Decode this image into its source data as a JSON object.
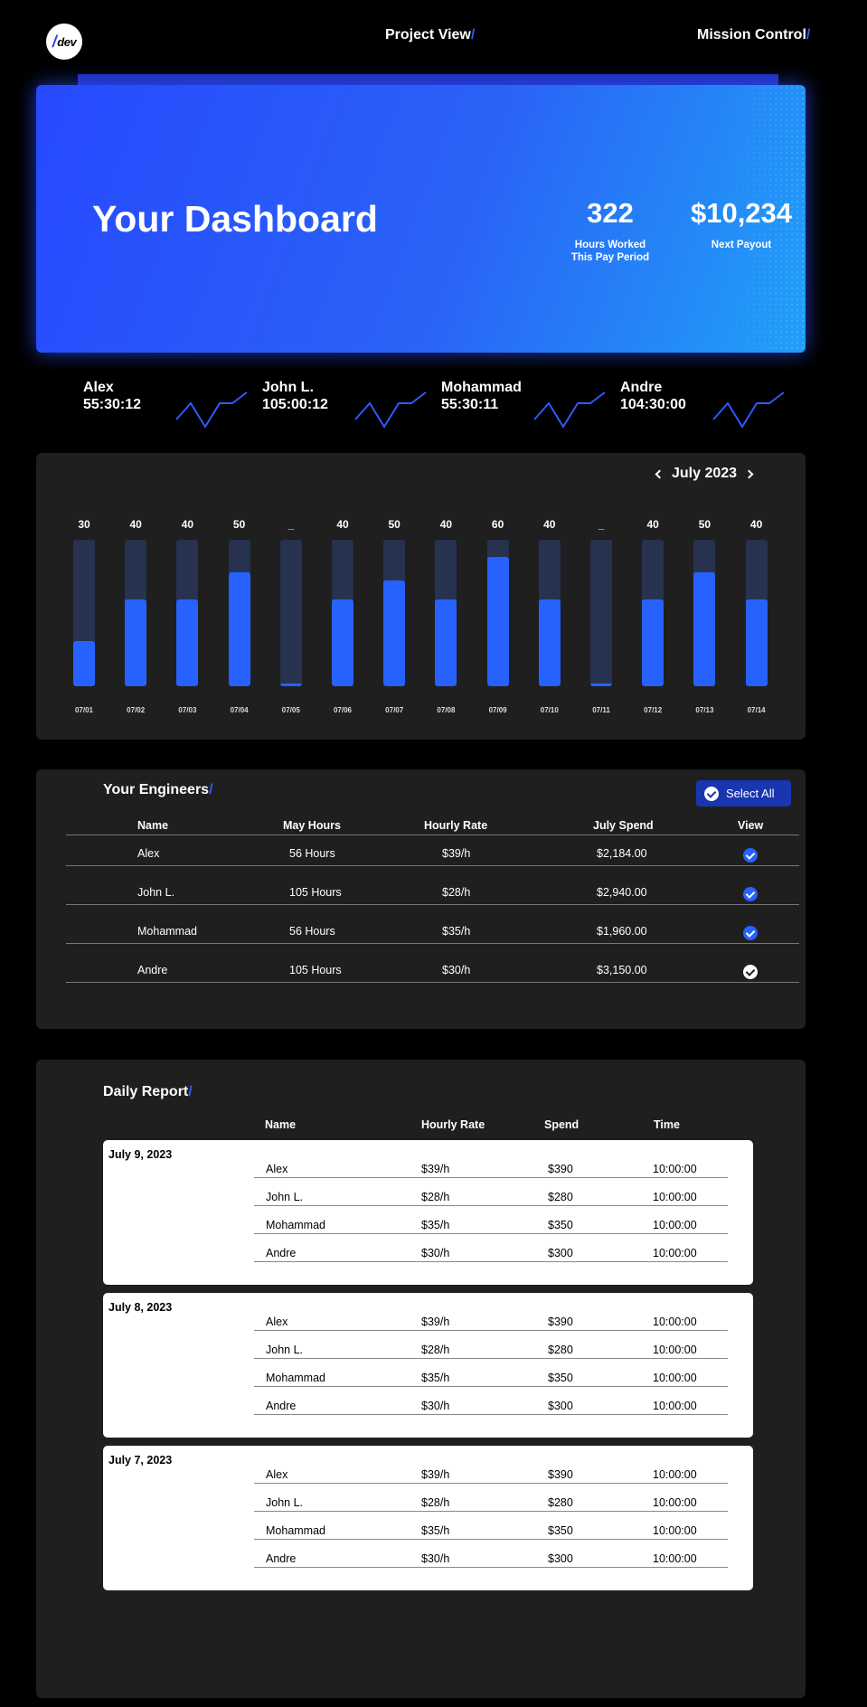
{
  "nav": {
    "project_view": "Project View",
    "mission_control": "Mission Control",
    "slash": "/",
    "logo_text": "dev"
  },
  "hero": {
    "title": "Your Dashboard",
    "hours_value": "322",
    "hours_label_1": "Hours Worked",
    "hours_label_2": "This Pay Period",
    "payout_value": "$10,234",
    "payout_label": "Next Payout"
  },
  "engineer_times": [
    {
      "name": "Alex",
      "time": "55:30:12"
    },
    {
      "name": "John L.",
      "time": "105:00:12"
    },
    {
      "name": "Mohammad",
      "time": "55:30:11"
    },
    {
      "name": "Andre",
      "time": "104:30:00"
    }
  ],
  "chart_data": {
    "type": "bar",
    "title": "July 2023",
    "categories": [
      "07/01",
      "07/02",
      "07/03",
      "07/04",
      "07/05",
      "07/06",
      "07/07",
      "07/08",
      "07/09",
      "07/10",
      "07/11",
      "07/12",
      "07/13",
      "07/14"
    ],
    "value_labels": [
      "30",
      "40",
      "40",
      "50",
      "_",
      "40",
      "50",
      "40",
      "60",
      "40",
      "_",
      "40",
      "50",
      "40"
    ],
    "fill_fraction": [
      0.31,
      0.59,
      0.59,
      0.78,
      0.02,
      0.59,
      0.72,
      0.59,
      0.88,
      0.59,
      0.02,
      0.59,
      0.78,
      0.59
    ],
    "colors": {
      "track": "#26324f",
      "fill": "#2762ff"
    }
  },
  "engineers_table": {
    "title": "Your Engineers",
    "select_all": "Select All",
    "headers": [
      "Name",
      "May Hours",
      "Hourly Rate",
      "July Spend",
      "View"
    ],
    "rows": [
      {
        "name": "Alex",
        "hours": "56 Hours",
        "rate": "$39/h",
        "spend": "$2,184.00",
        "view": "checked"
      },
      {
        "name": "John L.",
        "hours": "105 Hours",
        "rate": "$28/h",
        "spend": "$2,940.00",
        "view": "checked"
      },
      {
        "name": "Mohammad",
        "hours": "56 Hours",
        "rate": "$35/h",
        "spend": "$1,960.00",
        "view": "checked"
      },
      {
        "name": "Andre",
        "hours": "105 Hours",
        "rate": "$30/h",
        "spend": "$3,150.00",
        "view": "unchecked"
      }
    ]
  },
  "daily_report": {
    "title": "Daily Report",
    "headers": [
      "Name",
      "Hourly Rate",
      "Spend",
      "Time"
    ],
    "days": [
      {
        "date": "July 9, 2023",
        "rows": [
          {
            "name": "Alex",
            "rate": "$39/h",
            "spend": "$390",
            "time": "10:00:00"
          },
          {
            "name": "John L.",
            "rate": "$28/h",
            "spend": "$280",
            "time": "10:00:00"
          },
          {
            "name": "Mohammad",
            "rate": "$35/h",
            "spend": "$350",
            "time": "10:00:00"
          },
          {
            "name": "Andre",
            "rate": "$30/h",
            "spend": "$300",
            "time": "10:00:00"
          }
        ]
      },
      {
        "date": "July 8, 2023",
        "rows": [
          {
            "name": "Alex",
            "rate": "$39/h",
            "spend": "$390",
            "time": "10:00:00"
          },
          {
            "name": "John L.",
            "rate": "$28/h",
            "spend": "$280",
            "time": "10:00:00"
          },
          {
            "name": "Mohammad",
            "rate": "$35/h",
            "spend": "$350",
            "time": "10:00:00"
          },
          {
            "name": "Andre",
            "rate": "$30/h",
            "spend": "$300",
            "time": "10:00:00"
          }
        ]
      },
      {
        "date": "July 7, 2023",
        "rows": [
          {
            "name": "Alex",
            "rate": "$39/h",
            "spend": "$390",
            "time": "10:00:00"
          },
          {
            "name": "John L.",
            "rate": "$28/h",
            "spend": "$280",
            "time": "10:00:00"
          },
          {
            "name": "Mohammad",
            "rate": "$35/h",
            "spend": "$350",
            "time": "10:00:00"
          },
          {
            "name": "Andre",
            "rate": "$30/h",
            "spend": "$300",
            "time": "10:00:00"
          }
        ]
      }
    ]
  }
}
